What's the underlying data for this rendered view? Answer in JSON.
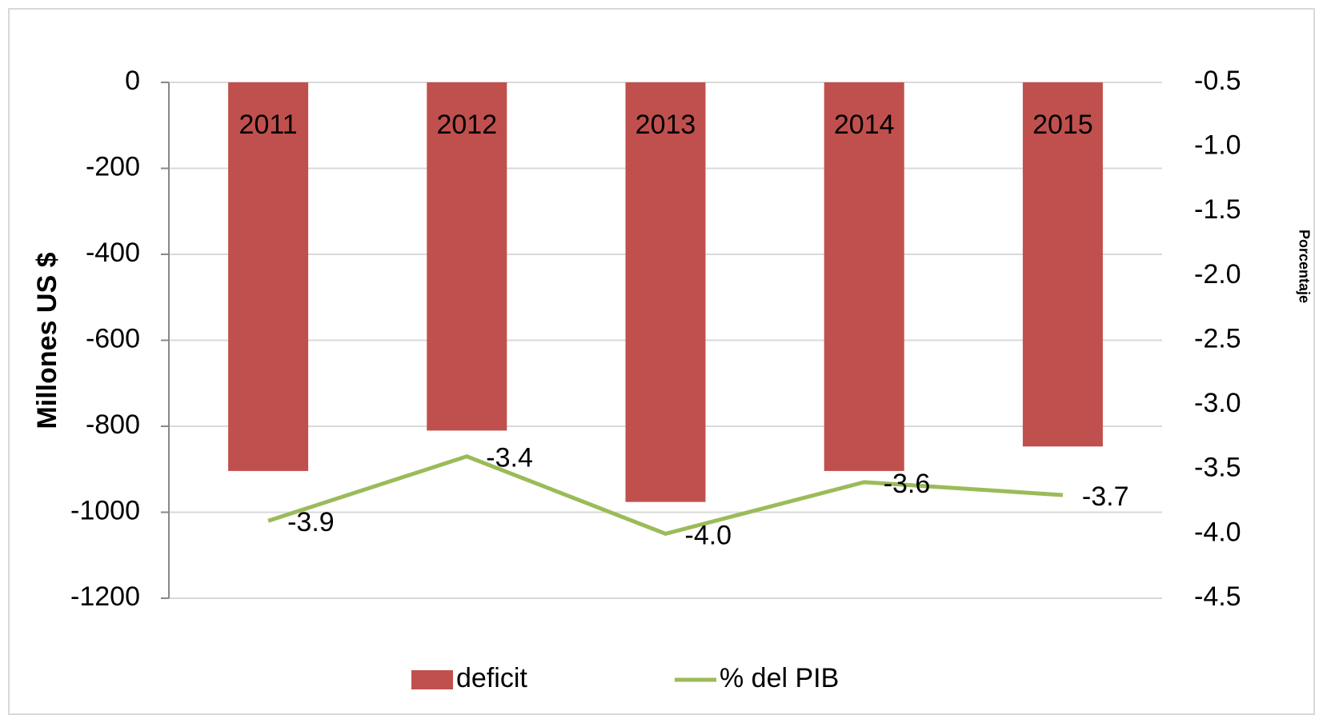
{
  "chart_data": {
    "type": "bar-line",
    "categories": [
      "2011",
      "2012",
      "2013",
      "2014",
      "2015"
    ],
    "series": [
      {
        "name": "deficit",
        "type": "bar",
        "color": "#c0504d",
        "values": [
          -904,
          -810,
          -976,
          -904,
          -847
        ]
      },
      {
        "name": "% del PIB",
        "type": "line",
        "axis": "y2",
        "color": "#9bbb59",
        "values": [
          -3.9,
          -3.4,
          -4.0,
          -3.6,
          -3.7
        ],
        "value_labels": [
          "-3.9",
          "-3.4",
          "-4.0",
          "-3.6",
          "-3.7"
        ]
      }
    ],
    "ylabel": "Millones US $",
    "y2label": "Porcentaje",
    "ylim": [
      -1200,
      0
    ],
    "yticks": [
      0,
      -200,
      -400,
      -600,
      -800,
      -1000,
      -1200
    ],
    "y2lim": [
      -4.5,
      -0.5
    ],
    "y2ticks": [
      -0.5,
      {
        "value": -1,
        "label": "-1.0"
      },
      -1.5,
      {
        "value": -2,
        "label": "-2.0"
      },
      -2.5,
      {
        "value": -3,
        "label": "-3.0"
      },
      -3.5,
      {
        "value": -4,
        "label": "-4.0"
      },
      -4.5
    ],
    "grid": true,
    "legend": "bottom"
  }
}
